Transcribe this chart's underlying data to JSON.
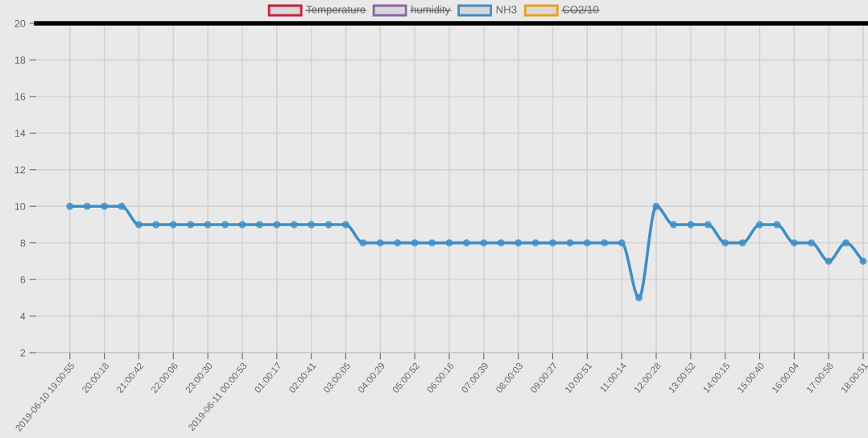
{
  "chart_data": {
    "type": "line",
    "categories": [
      "2019-06-10 19:00:55",
      null,
      "20:00:18",
      null,
      "21:00:42",
      null,
      "22:00:06",
      null,
      "23:00:30",
      null,
      "2019-06-11 00:00:53",
      null,
      "01:00:17",
      null,
      "02:00:41",
      null,
      "03:00:05",
      null,
      "04:00:29",
      null,
      "05:00:52",
      null,
      "06:00:16",
      null,
      "07:00:39",
      null,
      "08:00:03",
      null,
      "09:00:27",
      null,
      "10:00:51",
      null,
      "11:00:14",
      null,
      "12:00:28",
      null,
      "13:00:52",
      null,
      "14:00:15",
      null,
      "15:00:40",
      null,
      "16:00:04",
      null,
      "17:00:58",
      null,
      "18:00:51"
    ],
    "series": [
      {
        "name": "Temperature",
        "color": "#c8203a",
        "values": [
          null,
          null,
          null,
          null,
          null,
          null,
          null,
          null,
          null,
          null,
          null,
          null,
          null,
          null,
          null,
          null,
          null,
          null,
          null,
          null,
          null,
          null,
          null,
          null,
          null,
          null,
          null,
          null,
          null,
          null,
          null,
          null,
          null,
          null,
          null,
          null,
          null,
          null,
          null,
          null,
          null,
          null,
          null,
          null,
          null,
          null,
          null
        ]
      },
      {
        "name": "humidity",
        "color": "#8e63a8",
        "values": [
          null,
          null,
          null,
          null,
          null,
          null,
          null,
          null,
          null,
          null,
          null,
          null,
          null,
          null,
          null,
          null,
          null,
          null,
          null,
          null,
          null,
          null,
          null,
          null,
          null,
          null,
          null,
          null,
          null,
          null,
          null,
          null,
          null,
          null,
          null,
          null,
          null,
          null,
          null,
          null,
          null,
          null,
          null,
          null,
          null,
          null,
          null
        ]
      },
      {
        "name": "NH3",
        "color": "#3e8fc8",
        "values": [
          10,
          10,
          10,
          10,
          9,
          9,
          9,
          9,
          9,
          9,
          9,
          9,
          9,
          9,
          9,
          9,
          9,
          8,
          8,
          8,
          8,
          8,
          8,
          8,
          8,
          8,
          8,
          8,
          8,
          8,
          8,
          8,
          8,
          5,
          10,
          9,
          9,
          9,
          8,
          8,
          9,
          9,
          8,
          8,
          7,
          8,
          7
        ]
      },
      {
        "name": "CO2/10",
        "color": "#e8a020",
        "values": [
          null,
          null,
          null,
          null,
          null,
          null,
          null,
          null,
          null,
          null,
          null,
          null,
          null,
          null,
          null,
          null,
          null,
          null,
          null,
          null,
          null,
          null,
          null,
          null,
          null,
          null,
          null,
          null,
          null,
          null,
          null,
          null,
          null,
          null,
          null,
          null,
          null,
          null,
          null,
          null,
          null,
          null,
          null,
          null,
          null,
          null,
          null
        ]
      }
    ],
    "ylim": [
      2,
      20
    ],
    "yticks": [
      2,
      4,
      6,
      8,
      10,
      12,
      14,
      16,
      18,
      20
    ],
    "grid": true,
    "legend": "top",
    "marker": "circle",
    "line_style": "solid"
  }
}
